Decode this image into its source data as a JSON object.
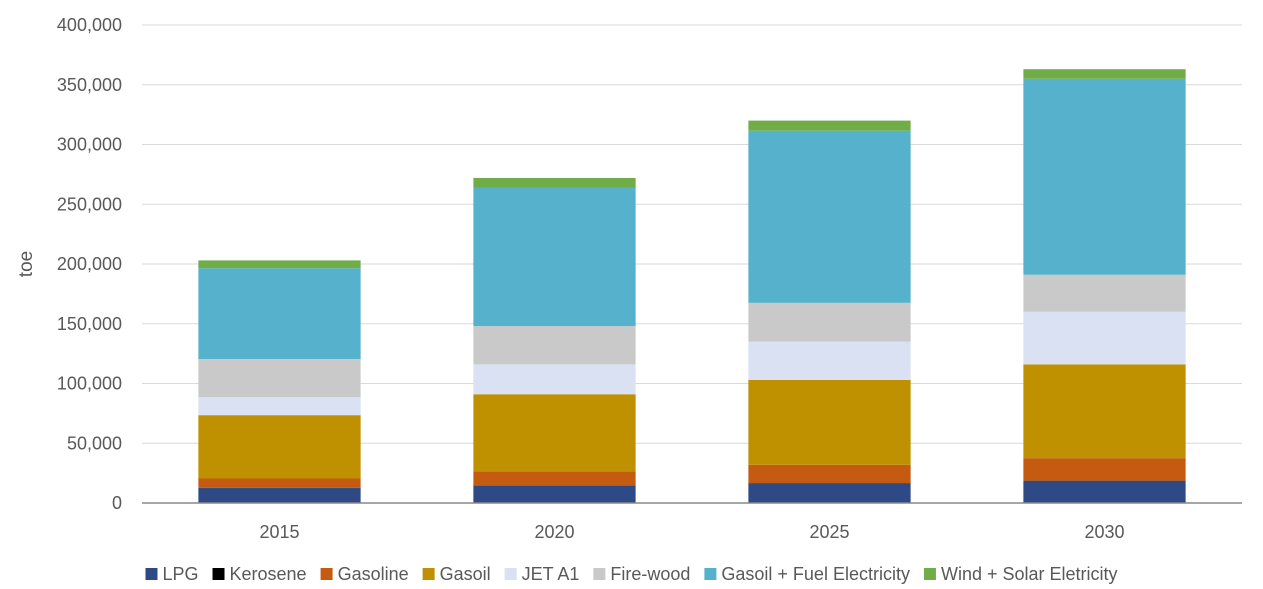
{
  "chart_data": {
    "type": "bar",
    "stacked": true,
    "categories": [
      "2015",
      "2020",
      "2025",
      "2030"
    ],
    "ylabel": "toe",
    "ylim": [
      0,
      400000
    ],
    "yticks": [
      0,
      50000,
      100000,
      150000,
      200000,
      250000,
      300000,
      350000,
      400000
    ],
    "ytick_labels": [
      "0",
      "50,000",
      "100,000",
      "150,000",
      "200,000",
      "250,000",
      "300,000",
      "350,000",
      "400,000"
    ],
    "grid": true,
    "legend_position": "bottom",
    "series": [
      {
        "name": "LPG",
        "color": "#2E4A86",
        "values": [
          12500,
          14500,
          16500,
          18500
        ]
      },
      {
        "name": "Kerosene",
        "color": "#000000",
        "values": [
          200,
          200,
          200,
          200
        ]
      },
      {
        "name": "Gasoline",
        "color": "#C55A11",
        "values": [
          7800,
          11800,
          15300,
          18800
        ]
      },
      {
        "name": "Gasoil",
        "color": "#BF9000",
        "values": [
          53000,
          64500,
          71000,
          78500
        ]
      },
      {
        "name": "JET A1",
        "color": "#D9E1F2",
        "values": [
          15000,
          25000,
          32000,
          44000
        ]
      },
      {
        "name": "Fire-wood",
        "color": "#C9C9C9",
        "values": [
          32000,
          32000,
          32500,
          31000
        ]
      },
      {
        "name": "Gasoil + Fuel Electricity",
        "color": "#56B1CC",
        "values": [
          76000,
          116000,
          144000,
          164000
        ]
      },
      {
        "name": "Wind + Solar Eletricity",
        "color": "#70AD47",
        "values": [
          6500,
          8000,
          8500,
          8000
        ]
      }
    ]
  }
}
